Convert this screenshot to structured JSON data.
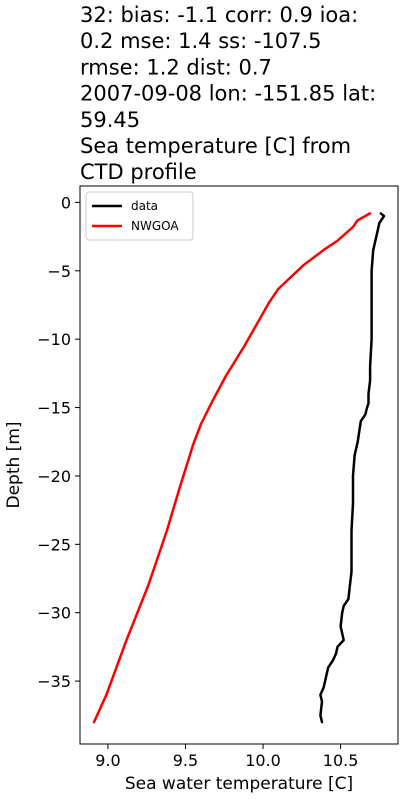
{
  "chart_data": {
    "type": "line",
    "title_lines": [
      "32: bias: -1.1  corr: 0.9  ioa:",
      "0.2  mse: 1.4  ss: -107.5",
      "rmse: 1.2  dist: 0.7",
      "2007-09-08 lon: -151.85 lat:",
      "59.45",
      "Sea temperature [C] from",
      "CTD profile"
    ],
    "xlabel": "Sea water temperature [C]",
    "ylabel": "Depth [m]",
    "xlim": [
      8.82,
      10.87
    ],
    "ylim": [
      -39.6,
      1.2
    ],
    "x_ticks": [
      9.0,
      9.5,
      10.0,
      10.5
    ],
    "x_tick_labels": [
      "9.0",
      "9.5",
      "10.0",
      "10.5"
    ],
    "y_ticks": [
      0,
      -5,
      -10,
      -15,
      -20,
      -25,
      -30,
      -35
    ],
    "y_tick_labels": [
      "0",
      "−5",
      "−10",
      "−15",
      "−20",
      "−25",
      "−30",
      "−35"
    ],
    "grid": false,
    "legend_position": "upper-left",
    "series": [
      {
        "name": "data",
        "color": "#000000",
        "x": [
          10.76,
          10.78,
          10.75,
          10.73,
          10.71,
          10.7,
          10.7,
          10.7,
          10.69,
          10.69,
          10.68,
          10.68,
          10.67,
          10.66,
          10.63,
          10.61,
          10.59,
          10.58,
          10.58,
          10.57,
          10.57,
          10.57,
          10.56,
          10.55,
          10.52,
          10.51,
          10.5,
          10.52,
          10.48,
          10.47,
          10.45,
          10.42,
          10.41,
          10.4,
          10.39,
          10.37,
          10.38,
          10.37,
          10.38
        ],
        "y": [
          -0.8,
          -1.0,
          -1.5,
          -2.5,
          -3.5,
          -5.0,
          -7.0,
          -10.0,
          -12.0,
          -13.0,
          -14.0,
          -14.7,
          -15.0,
          -15.5,
          -16.0,
          -17.5,
          -18.5,
          -20.0,
          -22.0,
          -24.0,
          -25.5,
          -27.0,
          -28.0,
          -29.0,
          -29.5,
          -30.0,
          -31.0,
          -32.0,
          -32.5,
          -33.0,
          -33.5,
          -34.0,
          -34.5,
          -35.0,
          -35.5,
          -36.0,
          -36.5,
          -37.5,
          -38.0
        ]
      },
      {
        "name": "NWGOA",
        "color": "#ff0000",
        "x": [
          10.69,
          10.61,
          10.58,
          10.48,
          10.4,
          10.26,
          10.1,
          10.04,
          9.98,
          9.88,
          9.76,
          9.67,
          9.6,
          9.55,
          9.47,
          9.38,
          9.26,
          9.12,
          8.99,
          8.91
        ],
        "y": [
          -0.8,
          -1.3,
          -1.8,
          -2.8,
          -3.4,
          -4.6,
          -6.3,
          -7.3,
          -8.5,
          -10.5,
          -12.7,
          -14.6,
          -16.2,
          -17.7,
          -20.6,
          -24.0,
          -28.0,
          -32.0,
          -36.0,
          -38.0
        ]
      }
    ]
  }
}
